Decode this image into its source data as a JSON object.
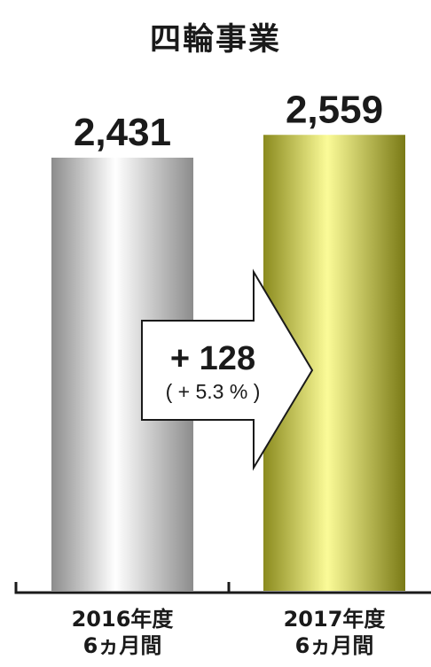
{
  "chart_data": {
    "type": "bar",
    "title": "四輪事業",
    "categories": [
      "2016年度\n6ヵ月間",
      "2017年度\n6ヵ月間"
    ],
    "category_lines": [
      [
        "2016年度",
        "6ヵ月間"
      ],
      [
        "2017年度",
        "6ヵ月間"
      ]
    ],
    "values": [
      2431,
      2559
    ],
    "value_labels": [
      "2,431",
      "2,559"
    ],
    "change": {
      "amount": "+ 128",
      "percent": "( + 5.3 % )"
    },
    "bar_colors": [
      "#9a9a9a",
      "#c8c832"
    ],
    "ylim": [
      0,
      2700
    ]
  }
}
